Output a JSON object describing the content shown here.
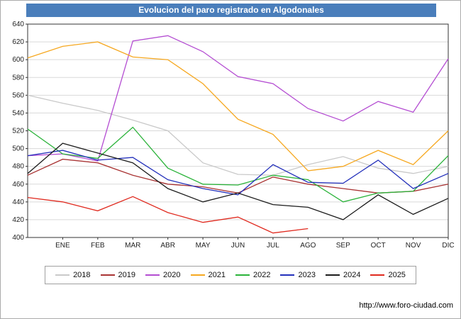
{
  "window": {
    "title": "Evolucion del paro registrado en Algodonales"
  },
  "footer": {
    "url": "http://www.foro-ciudad.com"
  },
  "theme": {
    "title_bar_bg": "#4a7ebb",
    "title_text": "#ffffff",
    "grid_color": "#d9d9d9",
    "plot_border": "#333333",
    "tick_text": "#222222"
  },
  "chart_data": {
    "type": "line",
    "title": "Evolucion del paro registrado en Algodonales",
    "categories": [
      "ENE",
      "FEB",
      "MAR",
      "ABR",
      "MAY",
      "JUN",
      "JUL",
      "AGO",
      "SEP",
      "OCT",
      "NOV",
      "DIC"
    ],
    "ylim": [
      400,
      640
    ],
    "ytick_step": 20,
    "grid": true,
    "legend_position": "bottom",
    "points_note_start_on_axis": true,
    "series": [
      {
        "name": "2018",
        "color": "#c9c9c9",
        "values": [
          560,
          551,
          543,
          532,
          520,
          484,
          471,
          470,
          482,
          491,
          478,
          472,
          480
        ]
      },
      {
        "name": "2019",
        "color": "#a93434",
        "values": [
          470,
          488,
          484,
          470,
          460,
          457,
          450,
          468,
          460,
          455,
          450,
          452,
          460
        ]
      },
      {
        "name": "2020",
        "color": "#b44dd2",
        "values": [
          492,
          494,
          486,
          621,
          627,
          609,
          581,
          573,
          545,
          531,
          553,
          541,
          601
        ]
      },
      {
        "name": "2021",
        "color": "#f6a820",
        "values": [
          602,
          615,
          620,
          603,
          600,
          573,
          533,
          516,
          475,
          480,
          498,
          482,
          520
        ]
      },
      {
        "name": "2022",
        "color": "#2bb33a",
        "values": [
          522,
          494,
          489,
          524,
          478,
          460,
          459,
          470,
          465,
          440,
          450,
          452,
          492
        ]
      },
      {
        "name": "2023",
        "color": "#2330bb",
        "values": [
          492,
          498,
          487,
          490,
          465,
          455,
          448,
          482,
          462,
          461,
          487,
          455,
          472
        ]
      },
      {
        "name": "2024",
        "color": "#1c1c1c",
        "values": [
          472,
          506,
          495,
          484,
          455,
          440,
          450,
          437,
          434,
          420,
          448,
          426,
          444
        ]
      },
      {
        "name": "2025",
        "color": "#e02a1f",
        "values": [
          445,
          440,
          430,
          446,
          428,
          417,
          423,
          405,
          410,
          null,
          null,
          null,
          null
        ]
      }
    ]
  }
}
